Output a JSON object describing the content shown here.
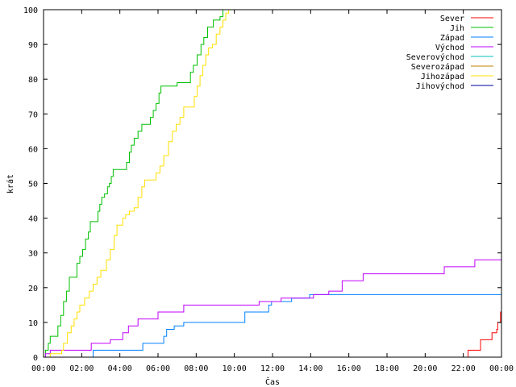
{
  "chart_data": {
    "type": "line",
    "title": "",
    "xlabel": "Čas",
    "ylabel": "krát",
    "xlim": [
      0,
      24
    ],
    "ylim": [
      0,
      100
    ],
    "x_ticks": [
      "00:00",
      "02:00",
      "04:00",
      "06:00",
      "08:00",
      "10:00",
      "12:00",
      "14:00",
      "16:00",
      "18:00",
      "20:00",
      "22:00",
      "00:00"
    ],
    "y_ticks": [
      "0",
      "10",
      "20",
      "30",
      "40",
      "50",
      "60",
      "70",
      "80",
      "90",
      "100"
    ],
    "grid": false,
    "legend_position": "top-right",
    "series": [
      {
        "name": "Sever",
        "color": "#ff0000",
        "points": [
          [
            22.2,
            0
          ],
          [
            22.25,
            2
          ],
          [
            22.85,
            2
          ],
          [
            22.9,
            5
          ],
          [
            23.45,
            5
          ],
          [
            23.5,
            7
          ],
          [
            23.75,
            8
          ],
          [
            23.8,
            10
          ],
          [
            23.95,
            13
          ],
          [
            24,
            14
          ]
        ]
      },
      {
        "name": "Jih",
        "color": "#00c000",
        "points": [
          [
            0,
            0
          ],
          [
            0.1,
            2
          ],
          [
            0.25,
            4
          ],
          [
            0.35,
            6
          ],
          [
            0.65,
            6
          ],
          [
            0.75,
            9
          ],
          [
            0.9,
            12
          ],
          [
            1.05,
            16
          ],
          [
            1.2,
            19
          ],
          [
            1.35,
            23
          ],
          [
            1.6,
            23
          ],
          [
            1.75,
            27
          ],
          [
            1.9,
            29
          ],
          [
            2.05,
            31
          ],
          [
            2.2,
            34
          ],
          [
            2.35,
            36
          ],
          [
            2.45,
            39
          ],
          [
            2.75,
            39
          ],
          [
            2.85,
            42
          ],
          [
            2.95,
            44
          ],
          [
            3.05,
            46
          ],
          [
            3.2,
            47
          ],
          [
            3.35,
            49
          ],
          [
            3.45,
            50
          ],
          [
            3.55,
            52
          ],
          [
            3.65,
            54
          ],
          [
            4.25,
            54
          ],
          [
            4.35,
            56
          ],
          [
            4.5,
            59
          ],
          [
            4.6,
            61
          ],
          [
            4.75,
            63
          ],
          [
            4.95,
            65
          ],
          [
            5.15,
            67
          ],
          [
            5.5,
            67
          ],
          [
            5.6,
            69
          ],
          [
            5.75,
            71
          ],
          [
            5.9,
            73
          ],
          [
            6.05,
            76
          ],
          [
            6.15,
            78
          ],
          [
            6.9,
            78
          ],
          [
            7,
            79
          ],
          [
            7.6,
            79
          ],
          [
            7.7,
            82
          ],
          [
            7.85,
            84
          ],
          [
            8.05,
            87
          ],
          [
            8.25,
            90
          ],
          [
            8.4,
            92
          ],
          [
            8.5,
            92
          ],
          [
            8.6,
            95
          ],
          [
            8.8,
            95
          ],
          [
            8.9,
            97
          ],
          [
            9.25,
            98
          ],
          [
            9.4,
            100
          ],
          [
            9.6,
            102
          ]
        ]
      },
      {
        "name": "Západ",
        "color": "#0080ff",
        "points": [
          [
            2.55,
            0
          ],
          [
            2.6,
            2
          ],
          [
            5.15,
            2
          ],
          [
            5.2,
            4
          ],
          [
            6.2,
            4
          ],
          [
            6.3,
            6
          ],
          [
            6.45,
            8
          ],
          [
            6.75,
            8
          ],
          [
            6.85,
            9
          ],
          [
            7.25,
            9
          ],
          [
            7.35,
            10
          ],
          [
            10.45,
            10
          ],
          [
            10.55,
            13
          ],
          [
            11.7,
            13
          ],
          [
            11.8,
            15
          ],
          [
            11.95,
            16
          ],
          [
            12.9,
            16
          ],
          [
            13.0,
            17
          ],
          [
            13.85,
            17
          ],
          [
            13.95,
            18
          ],
          [
            24,
            18
          ]
        ]
      },
      {
        "name": "Východ",
        "color": "#c000ff",
        "points": [
          [
            0.05,
            0
          ],
          [
            0.1,
            1
          ],
          [
            0.35,
            2
          ],
          [
            2.4,
            2
          ],
          [
            2.5,
            4
          ],
          [
            3.4,
            4
          ],
          [
            3.5,
            5
          ],
          [
            4.05,
            5
          ],
          [
            4.15,
            7
          ],
          [
            4.35,
            7
          ],
          [
            4.45,
            9
          ],
          [
            4.85,
            9
          ],
          [
            4.95,
            11
          ],
          [
            5.9,
            11
          ],
          [
            6.0,
            13
          ],
          [
            7.25,
            13
          ],
          [
            7.35,
            15
          ],
          [
            11.2,
            15
          ],
          [
            11.3,
            16
          ],
          [
            12.35,
            16
          ],
          [
            12.45,
            17
          ],
          [
            14.05,
            17
          ],
          [
            14.15,
            18
          ],
          [
            14.85,
            18
          ],
          [
            14.95,
            19
          ],
          [
            15.55,
            19
          ],
          [
            15.65,
            22
          ],
          [
            16.65,
            22
          ],
          [
            16.75,
            24
          ],
          [
            20.9,
            24
          ],
          [
            21.0,
            26
          ],
          [
            22.5,
            26
          ],
          [
            22.6,
            28
          ],
          [
            24,
            28
          ]
        ]
      },
      {
        "name": "Severovýchod",
        "color": "#00c0c0",
        "points": []
      },
      {
        "name": "Severozápad",
        "color": "#c08000",
        "points": []
      },
      {
        "name": "Jihozápad",
        "color": "#ffe000",
        "points": [
          [
            0.3,
            0
          ],
          [
            0.35,
            1
          ],
          [
            0.9,
            1
          ],
          [
            0.95,
            2
          ],
          [
            1.05,
            4
          ],
          [
            1.25,
            7
          ],
          [
            1.45,
            9
          ],
          [
            1.6,
            11
          ],
          [
            1.75,
            13
          ],
          [
            1.9,
            15
          ],
          [
            2.15,
            17
          ],
          [
            2.4,
            19
          ],
          [
            2.6,
            21
          ],
          [
            2.8,
            23
          ],
          [
            3.0,
            25
          ],
          [
            3.3,
            28
          ],
          [
            3.5,
            31
          ],
          [
            3.7,
            35
          ],
          [
            3.85,
            38
          ],
          [
            4.05,
            38
          ],
          [
            4.15,
            40
          ],
          [
            4.3,
            41
          ],
          [
            4.5,
            42
          ],
          [
            4.75,
            43
          ],
          [
            4.95,
            46
          ],
          [
            5.15,
            49
          ],
          [
            5.3,
            51
          ],
          [
            5.75,
            51
          ],
          [
            5.9,
            53
          ],
          [
            6.1,
            55
          ],
          [
            6.3,
            58
          ],
          [
            6.55,
            62
          ],
          [
            6.75,
            65
          ],
          [
            6.95,
            67
          ],
          [
            7.15,
            69
          ],
          [
            7.35,
            72
          ],
          [
            7.75,
            72
          ],
          [
            7.9,
            75
          ],
          [
            8.05,
            78
          ],
          [
            8.2,
            81
          ],
          [
            8.35,
            84
          ],
          [
            8.5,
            87
          ],
          [
            8.65,
            89
          ],
          [
            8.85,
            90
          ],
          [
            9.05,
            93
          ],
          [
            9.25,
            95
          ],
          [
            9.4,
            97
          ],
          [
            9.55,
            99
          ],
          [
            9.7,
            101
          ]
        ]
      },
      {
        "name": "Jihovýchod",
        "color": "#0000a0",
        "points": []
      }
    ]
  }
}
